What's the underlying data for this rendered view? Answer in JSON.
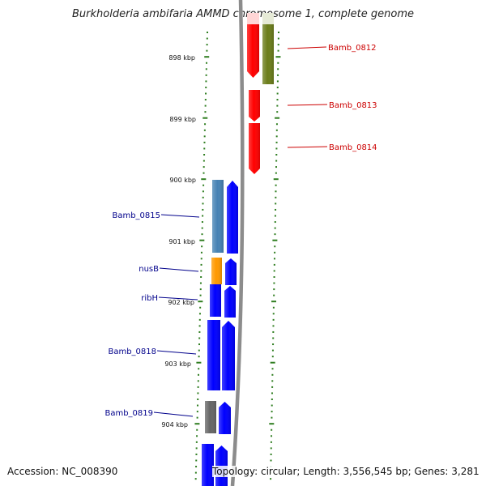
{
  "title": "Burkholderia ambifaria AMMD chromosome 1, complete genome",
  "footer": {
    "accession_label": "Accession:",
    "accession": "NC_008390",
    "topology": "Topology: circular",
    "length": "Length: 3,556,545 bp",
    "genes": "Genes: 3,281"
  },
  "colors": {
    "backbone": "#8c8c8c",
    "tick": "#2e7d1f",
    "label_forward": "#cc0000",
    "label_reverse": "#00008b",
    "red": "#ff0000",
    "olive": "#6b7d1a",
    "steel": "#4682b4",
    "orange": "#ff9900",
    "blue": "#0000ff",
    "gray": "#666666"
  },
  "scale_labels": [
    "898 kbp",
    "899 kbp",
    "900 kbp",
    "901 kbp",
    "902 kbp",
    "903 kbp",
    "904 kbp"
  ],
  "genes_right": [
    {
      "name": "Bamb_0812",
      "color": "olive"
    },
    {
      "name": "Bamb_0813",
      "color": "red"
    },
    {
      "name": "Bamb_0814",
      "color": "red"
    }
  ],
  "genes_left": [
    {
      "name": "Bamb_0815",
      "color": "steel"
    },
    {
      "name": "nusB",
      "color": "orange"
    },
    {
      "name": "ribH",
      "color": "blue"
    },
    {
      "name": "Bamb_0818",
      "color": "blue"
    },
    {
      "name": "Bamb_0819",
      "color": "gray"
    }
  ]
}
